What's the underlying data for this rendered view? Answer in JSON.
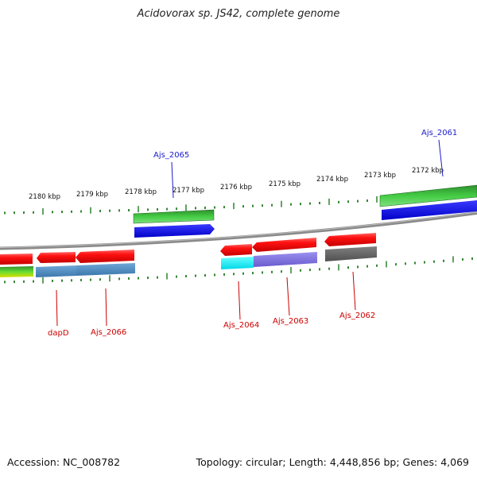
{
  "header": {
    "title": "Acidovorax sp. JS42, complete genome"
  },
  "footer": {
    "accession": "Accession: NC_008782",
    "summary": "Topology: circular; Length: 4,448,856 bp; Genes: 4,069"
  },
  "colors": {
    "background": "#ffffff",
    "backbone": "#888888",
    "ruler_tick": "#1f7a1f",
    "label_blue": "#1a1acc",
    "label_red": "#cc0000"
  },
  "ruler_labels": [
    "2180 kbp",
    "2179 kbp",
    "2178 kbp",
    "2177 kbp",
    "2176 kbp",
    "2175 kbp",
    "2174 kbp",
    "2173 kbp",
    "2172 kbp"
  ],
  "genes": {
    "forward": [
      {
        "name": "Ajs_2065",
        "label_color": "blue"
      },
      {
        "name": "Ajs_2061",
        "label_color": "blue"
      }
    ],
    "reverse": [
      {
        "name": "dapD",
        "label_color": "red"
      },
      {
        "name": "Ajs_2066",
        "label_color": "red"
      },
      {
        "name": "Ajs_2064",
        "label_color": "red"
      },
      {
        "name": "Ajs_2063",
        "label_color": "red"
      },
      {
        "name": "Ajs_2062",
        "label_color": "red"
      }
    ]
  }
}
